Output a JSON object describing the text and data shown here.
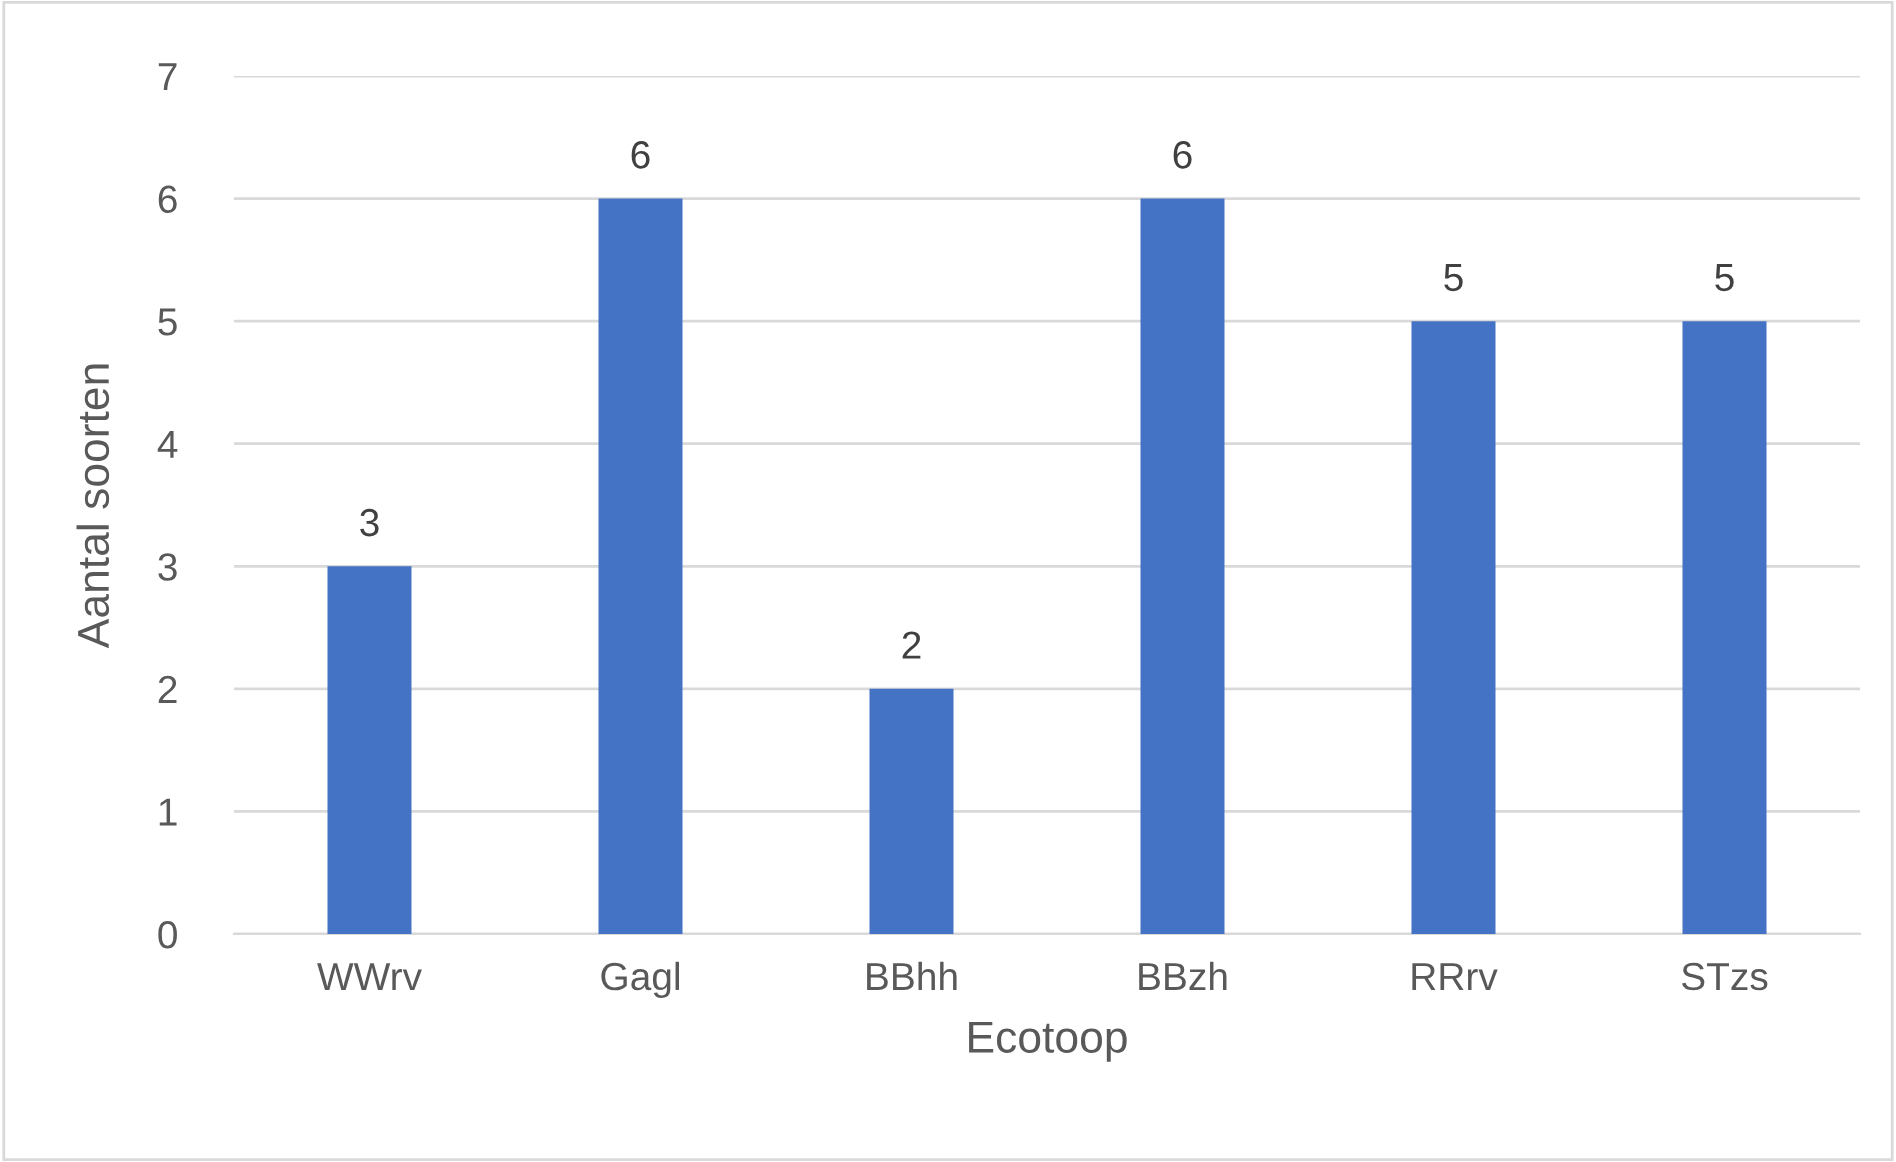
{
  "chart_data": {
    "type": "bar",
    "xlabel": "Ecotoop",
    "ylabel": "Aantal soorten",
    "categories": [
      "WWrv",
      "Gagl",
      "BBhh",
      "BBzh",
      "RRrv",
      "STzs"
    ],
    "values": [
      3,
      6,
      2,
      6,
      5,
      5
    ],
    "color": "#4472c4",
    "ylim": [
      0,
      7
    ],
    "yticks": [
      0,
      1,
      2,
      3,
      4,
      5,
      6,
      7
    ],
    "grid": "y",
    "data_labels": true
  }
}
